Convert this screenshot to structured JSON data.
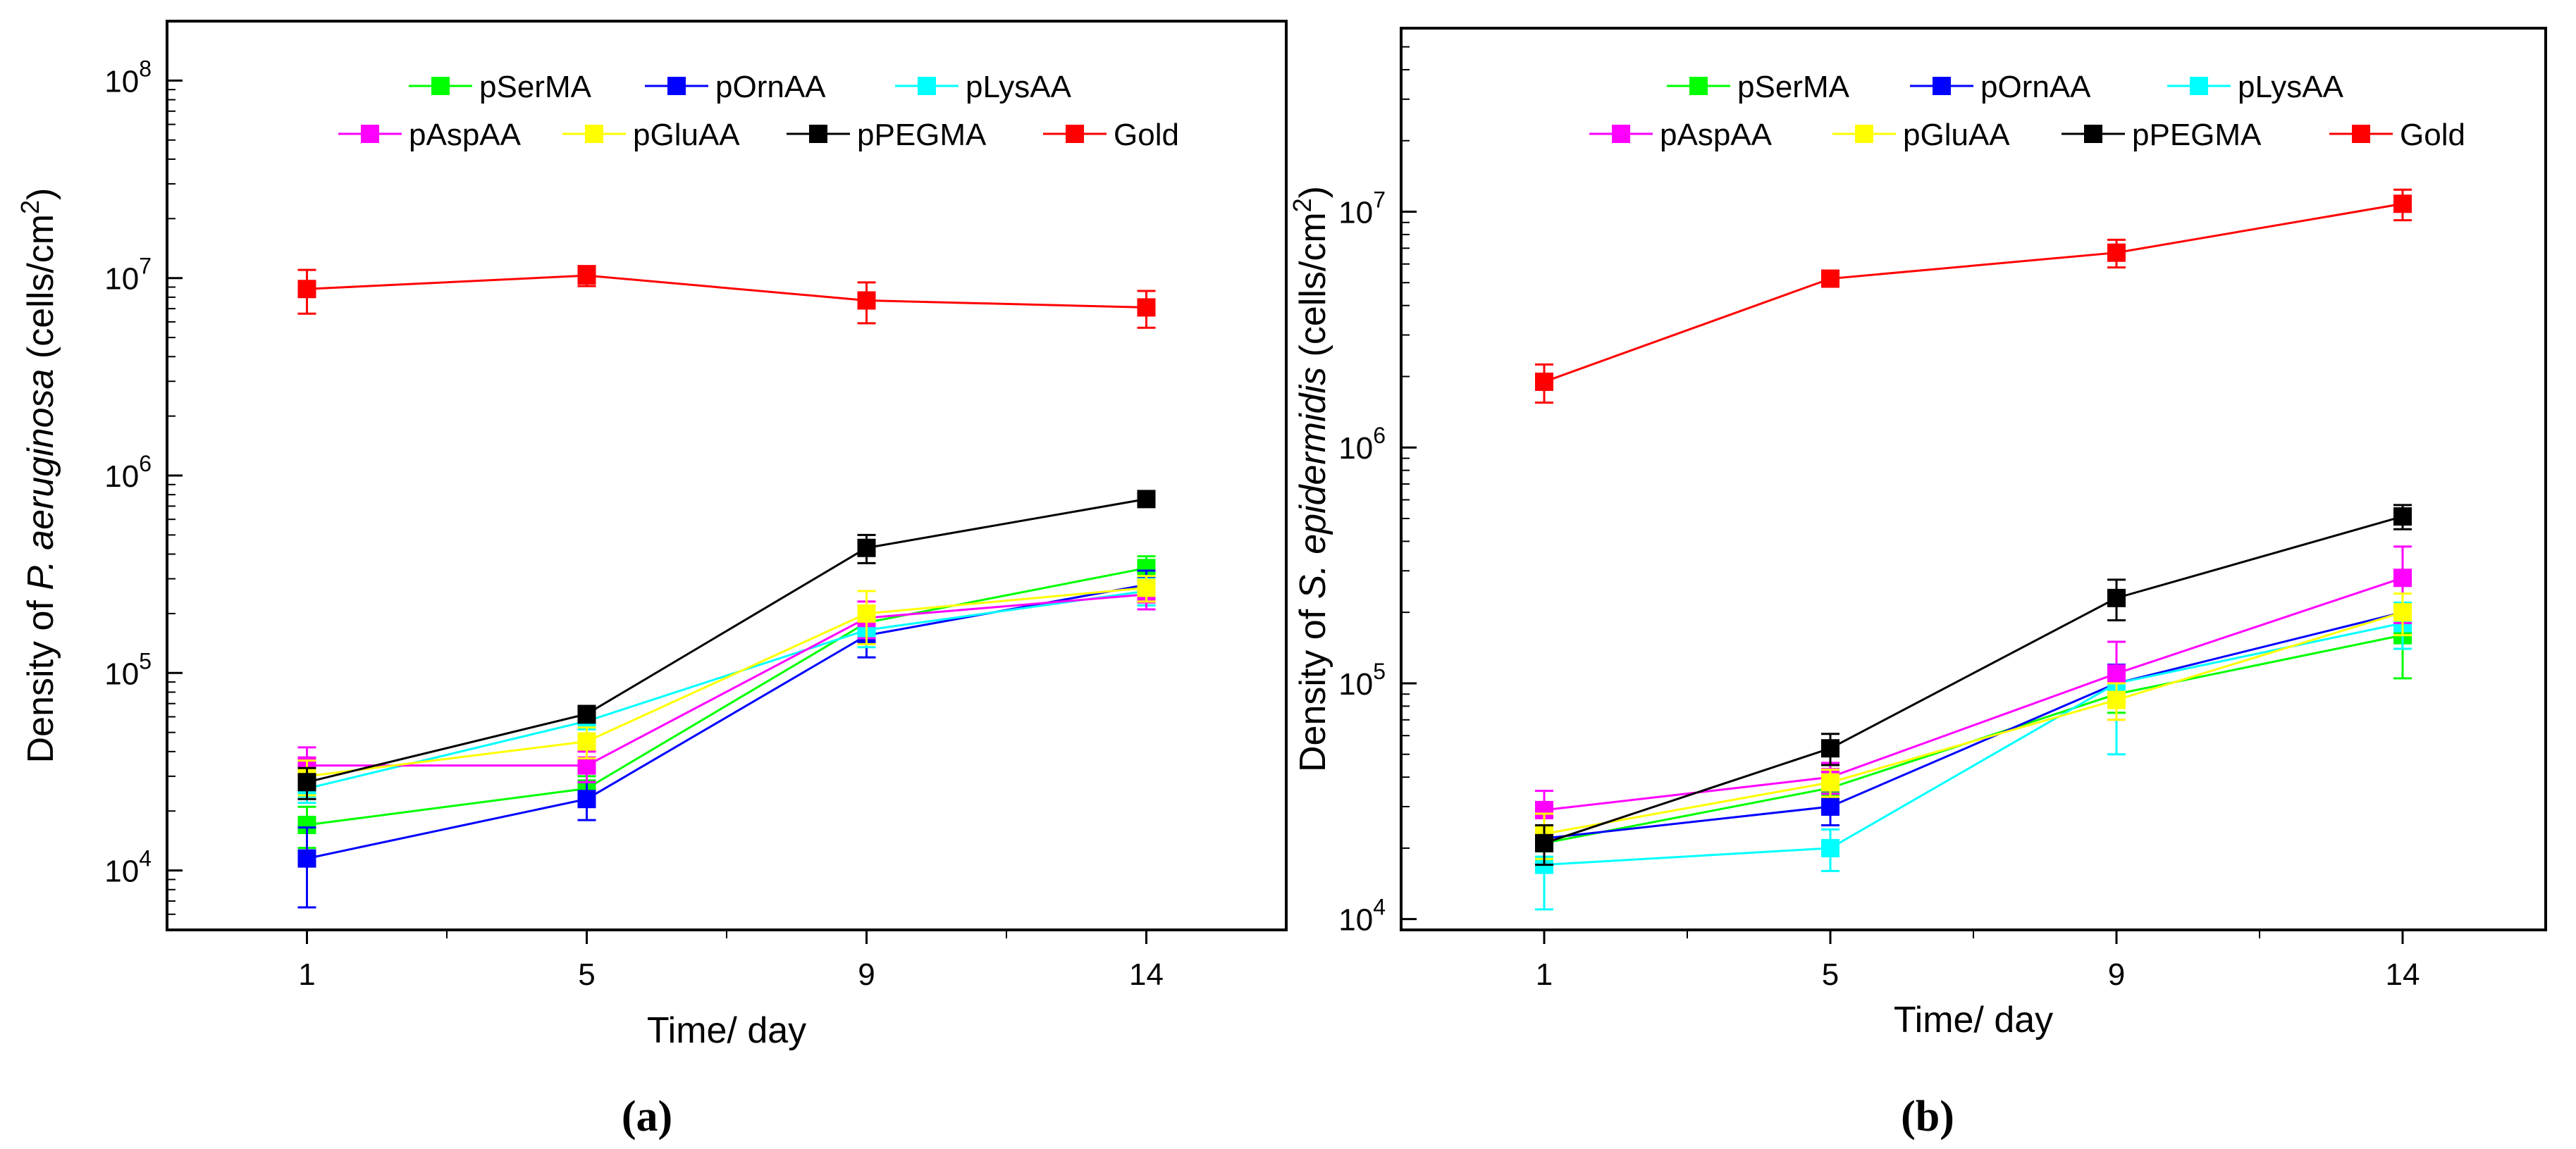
{
  "chart_data": [
    {
      "type": "line",
      "panel_label": "(a)",
      "xlabel": "Time/ day",
      "ylabel_prefix": "Density of ",
      "ylabel_species": "P. aeruginosa",
      "ylabel_suffix": " (cells/cm",
      "ylabel_sup": "2",
      "ylabel_close": ")",
      "yscale": "log",
      "ylim": [
        5000,
        200000000
      ],
      "x_categories": [
        "1",
        "5",
        "9",
        "14"
      ],
      "x_positions": [
        1,
        2,
        3,
        4
      ],
      "xlim": [
        0.5,
        4.5
      ],
      "y_ticks": [
        {
          "value": 10000,
          "base": "10",
          "exp": "4"
        },
        {
          "value": 100000,
          "base": "10",
          "exp": "5"
        },
        {
          "value": 1000000,
          "base": "10",
          "exp": "6"
        },
        {
          "value": 10000000,
          "base": "10",
          "exp": "7"
        },
        {
          "value": 100000000,
          "base": "10",
          "exp": "8"
        }
      ],
      "legend": {
        "placement": "top-center",
        "rows": [
          [
            "pSerMA",
            "pOrnAA",
            "pLysAA"
          ],
          [
            "pAspAA",
            "pGluAA",
            "pPEGMA",
            "Gold"
          ]
        ]
      },
      "series": [
        {
          "name": "pSerMA",
          "color": "#00ff00",
          "values": [
            17000,
            26000,
            180000,
            340000
          ],
          "errors": [
            4000,
            4000,
            30000,
            50000
          ]
        },
        {
          "name": "pOrnAA",
          "color": "#0000ff",
          "values": [
            11500,
            23000,
            155000,
            280000
          ],
          "errors": [
            5000,
            5000,
            35000,
            50000
          ]
        },
        {
          "name": "pLysAA",
          "color": "#00ffff",
          "values": [
            26000,
            57000,
            165000,
            260000
          ],
          "errors": [
            4000,
            5000,
            30000,
            40000
          ]
        },
        {
          "name": "pAspAA",
          "color": "#ff00ff",
          "values": [
            34000,
            34000,
            190000,
            250000
          ],
          "errors": [
            8000,
            6000,
            40000,
            40000
          ]
        },
        {
          "name": "pGluAA",
          "color": "#ffff00",
          "values": [
            30000,
            45000,
            200000,
            270000
          ],
          "errors": [
            6000,
            8000,
            60000,
            40000
          ]
        },
        {
          "name": "pPEGMA",
          "color": "#000000",
          "values": [
            28000,
            62000,
            430000,
            760000
          ],
          "errors": [
            5000,
            6000,
            70000,
            50000
          ]
        },
        {
          "name": "Gold",
          "color": "#ff0000",
          "values": [
            8800000,
            10300000,
            7700000,
            7100000
          ],
          "errors": [
            2200000,
            1200000,
            1800000,
            1500000
          ]
        }
      ]
    },
    {
      "type": "line",
      "panel_label": "(b)",
      "xlabel": "Time/ day",
      "ylabel_prefix": "Density of ",
      "ylabel_species": "S. epidermidis",
      "ylabel_suffix": " (cells/cm",
      "ylabel_sup": "2",
      "ylabel_close": ")",
      "yscale": "log",
      "ylim": [
        9000,
        60000000
      ],
      "x_categories": [
        "1",
        "5",
        "9",
        "14"
      ],
      "x_positions": [
        1,
        2,
        3,
        4
      ],
      "xlim": [
        0.5,
        4.5
      ],
      "y_ticks": [
        {
          "value": 10000,
          "base": "10",
          "exp": "4"
        },
        {
          "value": 100000,
          "base": "10",
          "exp": "5"
        },
        {
          "value": 1000000,
          "base": "10",
          "exp": "6"
        },
        {
          "value": 10000000,
          "base": "10",
          "exp": "7"
        }
      ],
      "legend": {
        "placement": "top-center",
        "rows": [
          [
            "pSerMA",
            "pOrnAA",
            "pLysAA"
          ],
          [
            "pAspAA",
            "pGluAA",
            "pPEGMA",
            "Gold"
          ]
        ]
      },
      "series": [
        {
          "name": "pSerMA",
          "color": "#00ff00",
          "values": [
            21000,
            36000,
            90000,
            160000
          ],
          "errors": [
            4000,
            5000,
            15000,
            55000
          ]
        },
        {
          "name": "pOrnAA",
          "color": "#0000ff",
          "values": [
            22000,
            30000,
            100000,
            200000
          ],
          "errors": [
            5000,
            5000,
            20000,
            60000
          ]
        },
        {
          "name": "pLysAA",
          "color": "#00ffff",
          "values": [
            17000,
            20000,
            100000,
            180000
          ],
          "errors": [
            6000,
            4000,
            50000,
            40000
          ]
        },
        {
          "name": "pAspAA",
          "color": "#ff00ff",
          "values": [
            29000,
            40000,
            110000,
            280000
          ],
          "errors": [
            6000,
            6000,
            40000,
            100000
          ]
        },
        {
          "name": "pGluAA",
          "color": "#ffff00",
          "values": [
            23000,
            38000,
            85000,
            200000
          ],
          "errors": [
            5000,
            5000,
            15000,
            40000
          ]
        },
        {
          "name": "pPEGMA",
          "color": "#000000",
          "values": [
            21000,
            53000,
            230000,
            510000
          ],
          "errors": [
            4000,
            8000,
            45000,
            60000
          ]
        },
        {
          "name": "Gold",
          "color": "#ff0000",
          "values": [
            1900000,
            5200000,
            6700000,
            10800000
          ],
          "errors": [
            350000,
            350000,
            900000,
            1600000
          ]
        }
      ]
    }
  ]
}
